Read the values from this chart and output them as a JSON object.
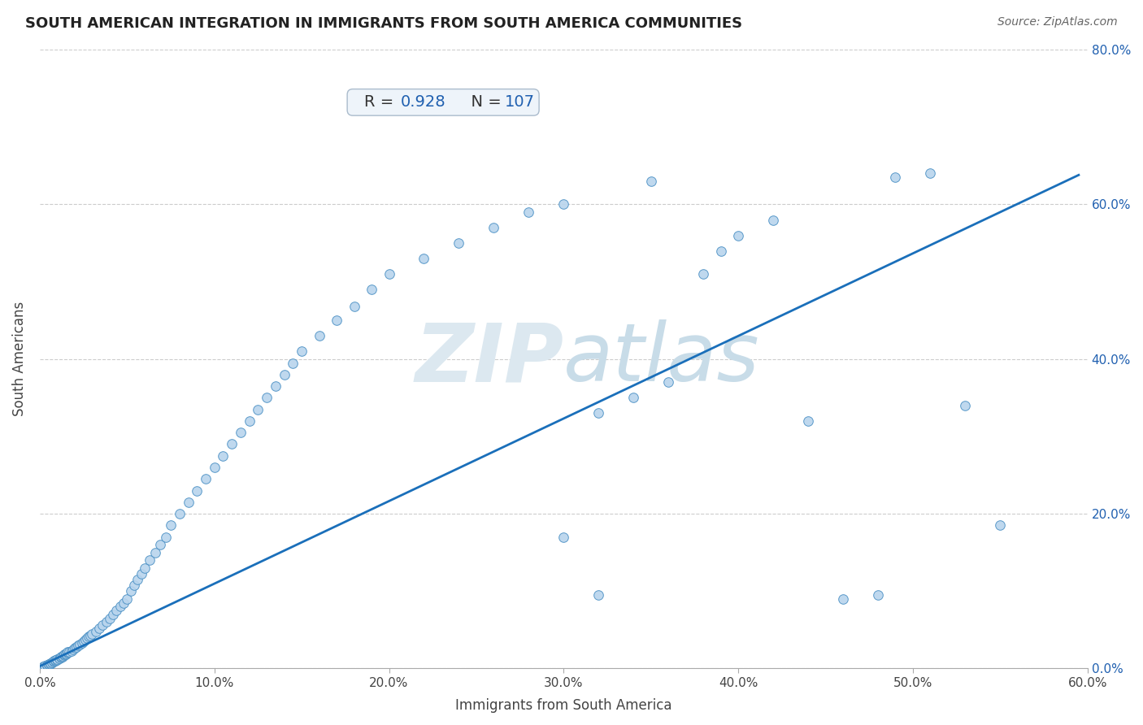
{
  "title": "SOUTH AMERICAN INTEGRATION IN IMMIGRANTS FROM SOUTH AMERICA COMMUNITIES",
  "source": "Source: ZipAtlas.com",
  "xlabel": "Immigrants from South America",
  "ylabel": "South Americans",
  "R": 0.928,
  "N": 107,
  "xlim": [
    0.0,
    0.6
  ],
  "ylim": [
    0.0,
    0.8
  ],
  "xticks": [
    0.0,
    0.1,
    0.2,
    0.3,
    0.4,
    0.5,
    0.6
  ],
  "yticks": [
    0.0,
    0.2,
    0.4,
    0.6,
    0.8
  ],
  "scatter_color": "#b8d4ed",
  "scatter_edge_color": "#4a90c4",
  "line_color": "#1a6fba",
  "title_color": "#222222",
  "axis_label_color": "#444444",
  "tick_color": "#444444",
  "watermark_color": "#dce8f0",
  "annotation_box_color": "#eef4fa",
  "annotation_border_color": "#aabbcc",
  "R_label_color": "#333333",
  "R_value_color": "#2060b0",
  "N_label_color": "#333333",
  "N_value_color": "#2060b0",
  "right_tick_color": "#2060b0",
  "scatter_x": [
    0.001,
    0.002,
    0.002,
    0.003,
    0.003,
    0.004,
    0.004,
    0.005,
    0.005,
    0.006,
    0.006,
    0.007,
    0.007,
    0.008,
    0.008,
    0.009,
    0.009,
    0.01,
    0.01,
    0.011,
    0.011,
    0.012,
    0.012,
    0.013,
    0.013,
    0.014,
    0.014,
    0.015,
    0.015,
    0.016,
    0.016,
    0.017,
    0.018,
    0.019,
    0.02,
    0.021,
    0.022,
    0.023,
    0.024,
    0.025,
    0.026,
    0.027,
    0.028,
    0.029,
    0.03,
    0.032,
    0.034,
    0.036,
    0.038,
    0.04,
    0.042,
    0.044,
    0.046,
    0.048,
    0.05,
    0.052,
    0.054,
    0.056,
    0.058,
    0.06,
    0.063,
    0.066,
    0.069,
    0.072,
    0.075,
    0.08,
    0.085,
    0.09,
    0.095,
    0.1,
    0.105,
    0.11,
    0.115,
    0.12,
    0.125,
    0.13,
    0.135,
    0.14,
    0.145,
    0.15,
    0.16,
    0.17,
    0.18,
    0.19,
    0.2,
    0.22,
    0.24,
    0.26,
    0.28,
    0.3,
    0.32,
    0.34,
    0.36,
    0.38,
    0.39,
    0.4,
    0.42,
    0.44,
    0.46,
    0.48,
    0.3,
    0.32,
    0.35,
    0.49,
    0.51,
    0.53,
    0.55
  ],
  "scatter_y": [
    0.001,
    0.002,
    0.003,
    0.003,
    0.004,
    0.004,
    0.005,
    0.005,
    0.006,
    0.006,
    0.007,
    0.008,
    0.008,
    0.009,
    0.01,
    0.01,
    0.011,
    0.011,
    0.012,
    0.013,
    0.013,
    0.014,
    0.015,
    0.015,
    0.016,
    0.017,
    0.018,
    0.018,
    0.019,
    0.02,
    0.021,
    0.022,
    0.023,
    0.025,
    0.027,
    0.028,
    0.03,
    0.031,
    0.033,
    0.035,
    0.037,
    0.039,
    0.041,
    0.043,
    0.045,
    0.048,
    0.052,
    0.056,
    0.06,
    0.065,
    0.07,
    0.075,
    0.08,
    0.085,
    0.09,
    0.1,
    0.108,
    0.115,
    0.122,
    0.13,
    0.14,
    0.15,
    0.16,
    0.17,
    0.185,
    0.2,
    0.215,
    0.23,
    0.245,
    0.26,
    0.275,
    0.29,
    0.305,
    0.32,
    0.335,
    0.35,
    0.365,
    0.38,
    0.395,
    0.41,
    0.43,
    0.45,
    0.468,
    0.49,
    0.51,
    0.53,
    0.55,
    0.57,
    0.59,
    0.6,
    0.33,
    0.35,
    0.37,
    0.51,
    0.54,
    0.56,
    0.58,
    0.32,
    0.09,
    0.095,
    0.17,
    0.095,
    0.63,
    0.635,
    0.64,
    0.34,
    0.185
  ],
  "line_x": [
    0.0,
    0.595
  ],
  "line_y": [
    0.003,
    0.638
  ]
}
